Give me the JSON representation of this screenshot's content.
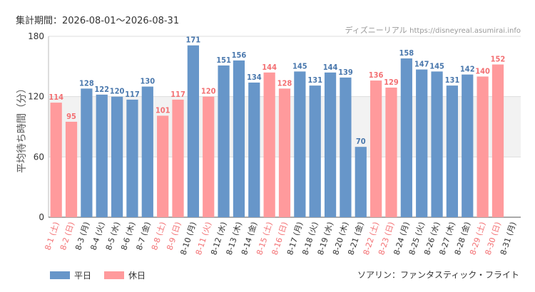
{
  "header": {
    "period": "集計期間：2026-08-01〜2026-08-31",
    "credit_site": "ディズニーリアル",
    "credit_url": "https://disneyreal.asumirai.info"
  },
  "footer": {
    "attraction": "ソアリン：ファンタスティック・フライト"
  },
  "colors": {
    "weekday": "#6796c9",
    "holiday": "#ff9a9c",
    "weekday_label": "#4a78ad",
    "holiday_label": "#f37073",
    "tick_weekday": "#333333",
    "tick_holiday": "#f37073"
  },
  "chart_data": {
    "type": "bar",
    "title": "",
    "xlabel": "",
    "ylabel": "平均待ち時間（分）",
    "ylim": [
      0,
      180
    ],
    "yticks": [
      0,
      60,
      120,
      180
    ],
    "categories": [
      "8-1 (土)",
      "8-2 (日)",
      "8-3 (月)",
      "8-4 (火)",
      "8-5 (水)",
      "8-6 (木)",
      "8-7 (金)",
      "8-8 (土)",
      "8-9 (日)",
      "8-10 (月)",
      "8-11 (火)",
      "8-12 (水)",
      "8-13 (木)",
      "8-14 (金)",
      "8-15 (土)",
      "8-16 (日)",
      "8-17 (月)",
      "8-18 (火)",
      "8-19 (水)",
      "8-20 (木)",
      "8-21 (金)",
      "8-22 (土)",
      "8-23 (日)",
      "8-24 (月)",
      "8-25 (火)",
      "8-26 (水)",
      "8-27 (木)",
      "8-28 (金)",
      "8-29 (土)",
      "8-30 (日)",
      "8-31 (月)"
    ],
    "values": [
      114,
      95,
      128,
      122,
      120,
      117,
      130,
      101,
      117,
      171,
      120,
      151,
      156,
      134,
      144,
      128,
      145,
      131,
      144,
      139,
      70,
      136,
      129,
      158,
      147,
      145,
      131,
      142,
      140,
      152,
      null
    ],
    "day_type": [
      "holiday",
      "holiday",
      "weekday",
      "weekday",
      "weekday",
      "weekday",
      "weekday",
      "holiday",
      "holiday",
      "weekday",
      "holiday",
      "weekday",
      "weekday",
      "weekday",
      "holiday",
      "holiday",
      "weekday",
      "weekday",
      "weekday",
      "weekday",
      "weekday",
      "holiday",
      "holiday",
      "weekday",
      "weekday",
      "weekday",
      "weekday",
      "weekday",
      "holiday",
      "holiday",
      "weekday"
    ],
    "legend": [
      {
        "name": "平日",
        "type": "weekday"
      },
      {
        "name": "休日",
        "type": "holiday"
      }
    ],
    "legend_position": "bottom-left",
    "grid": true,
    "shaded_band": [
      60,
      120
    ]
  }
}
